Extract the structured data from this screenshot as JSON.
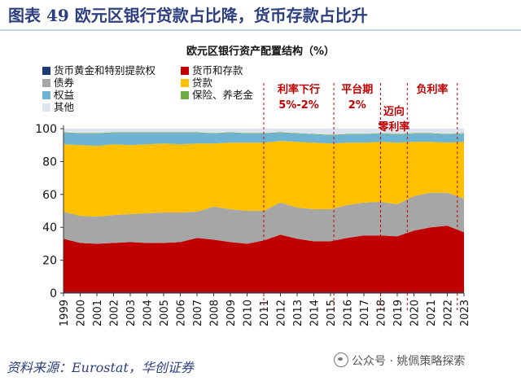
{
  "figure_title": "图表 49  欧元区银行贷款占比降，货币存款占比升",
  "source": "资料来源：Eurostat，华创证券",
  "watermark": "公众号 · 姚佩策略探索",
  "chart_data": {
    "type": "area",
    "title": "欧元区银行资产配置结构（%）",
    "stacked": true,
    "x": [
      1999,
      2000,
      2001,
      2002,
      2003,
      2004,
      2005,
      2006,
      2007,
      2008,
      2009,
      2010,
      2011,
      2012,
      2013,
      2014,
      2015,
      2016,
      2017,
      2018,
      2019,
      2020,
      2021,
      2022,
      2023
    ],
    "ylim": [
      0,
      100
    ],
    "yticks": [
      0,
      20,
      40,
      60,
      80,
      100
    ],
    "grid": false,
    "legend_position": "top-left",
    "series": [
      {
        "name": "货币黄金和特别提款权",
        "color": "#1f3a73",
        "values": [
          0.5,
          0.5,
          0.5,
          0.5,
          0.5,
          0.5,
          0.5,
          0.5,
          0.5,
          0.5,
          0.5,
          0.5,
          0.5,
          0.5,
          0.5,
          0.5,
          0.5,
          0.5,
          0.5,
          0.5,
          0.5,
          0.5,
          0.5,
          0.5,
          0.5
        ]
      },
      {
        "name": "货币和存款",
        "color": "#c00000",
        "values": [
          32.5,
          30,
          29.5,
          30,
          30.5,
          30,
          30,
          30.5,
          33,
          32,
          30.5,
          29.5,
          31.5,
          35,
          32.5,
          31,
          31,
          33,
          34.5,
          34.5,
          34,
          37.5,
          39.5,
          40.5,
          36.5
        ]
      },
      {
        "name": "债券",
        "color": "#a6a6a6",
        "values": [
          16.5,
          16.5,
          16.5,
          17,
          17,
          18,
          18.5,
          18,
          16,
          20,
          20,
          20,
          18,
          19.5,
          19,
          19.5,
          19.5,
          20,
          20,
          20.5,
          19.5,
          21,
          21,
          20,
          20.5
        ]
      },
      {
        "name": "贷款",
        "color": "#ffc000",
        "values": [
          41,
          43,
          43,
          43,
          42,
          42,
          42,
          41.5,
          41.5,
          38.5,
          40.5,
          41.5,
          41.5,
          37.5,
          40,
          40.5,
          40,
          38,
          36.5,
          36.5,
          37.5,
          33,
          31,
          30.5,
          34.5
        ]
      },
      {
        "name": "权益",
        "color": "#6fb3d2",
        "values": [
          7,
          7,
          7.5,
          7,
          7.5,
          7,
          6.5,
          7,
          6.5,
          6,
          6,
          5.5,
          5.5,
          5,
          5,
          5,
          5,
          5,
          5,
          5,
          5,
          5,
          5,
          5,
          5
        ]
      },
      {
        "name": "保险、养老金",
        "color": "#70ad47",
        "values": [
          0.3,
          0.3,
          0.3,
          0.3,
          0.3,
          0.3,
          0.3,
          0.3,
          0.3,
          0.3,
          0.3,
          0.3,
          0.3,
          0.3,
          0.3,
          0.3,
          0.3,
          0.3,
          0.3,
          0.3,
          0.3,
          0.3,
          0.3,
          0.3,
          0.3
        ]
      },
      {
        "name": "其他",
        "color": "#dde4ef",
        "values": [
          2.2,
          2.7,
          2.7,
          2.2,
          2.2,
          2.2,
          2.2,
          2.2,
          2.2,
          2.7,
          2.2,
          2.7,
          2.7,
          2.2,
          2.7,
          3.2,
          3.7,
          3.2,
          3.2,
          2.7,
          3.2,
          2.7,
          2.7,
          3.2,
          2.7
        ]
      }
    ],
    "annotations": [
      {
        "lines": [
          "利率下行",
          "5%-2%"
        ],
        "start": 2011,
        "end": 2015.2,
        "color": "#c00000"
      },
      {
        "lines": [
          "平台期",
          "2%"
        ],
        "start": 2015.2,
        "end": 2018,
        "color": "#c00000"
      },
      {
        "lines": [
          "迈向",
          "零利率"
        ],
        "start": 2018,
        "end": 2019.6,
        "color": "#c00000"
      },
      {
        "lines": [
          "负利率"
        ],
        "start": 2019.6,
        "end": 2022.6,
        "color": "#c00000"
      }
    ]
  }
}
